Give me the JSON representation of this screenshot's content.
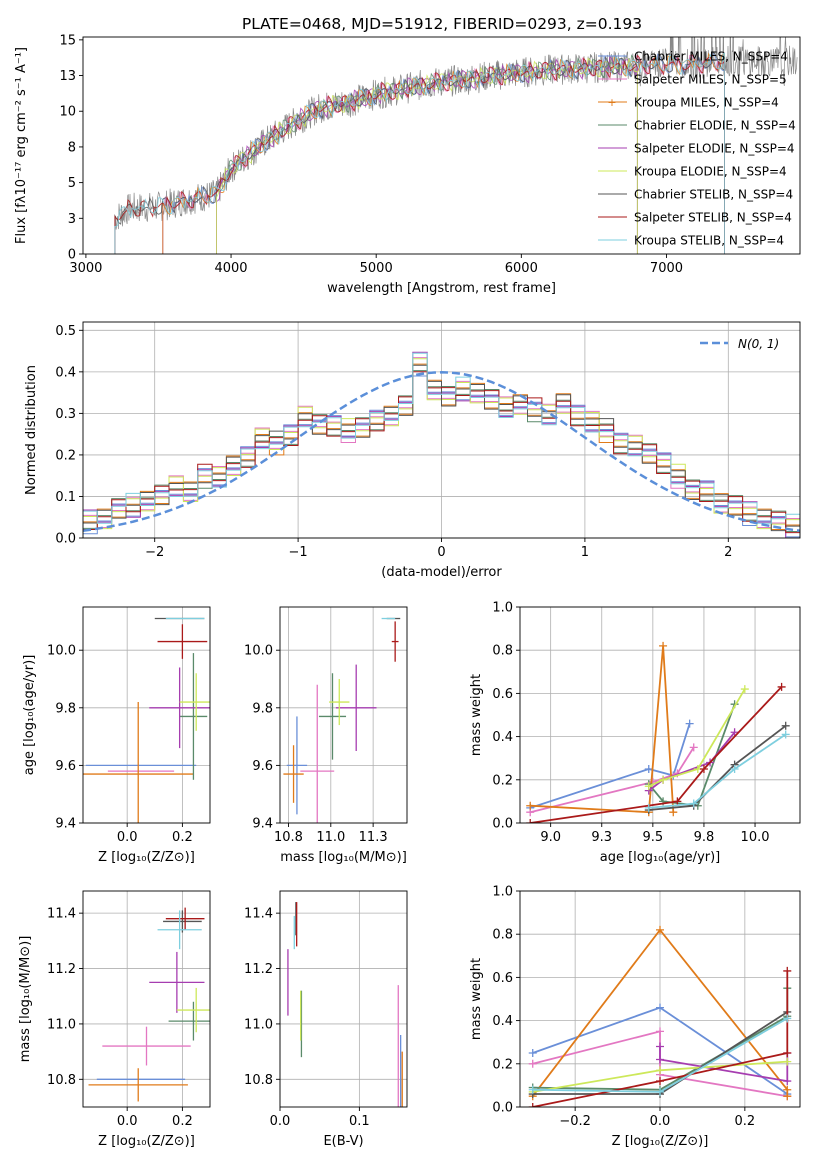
{
  "title": "PLATE=0468, MJD=51912, FIBERID=0293, z=0.193",
  "colors": [
    "#6a8fd8",
    "#e377c2",
    "#e07b1a",
    "#5a8a6a",
    "#a63db0",
    "#cde85a",
    "#555555",
    "#aa1a1a",
    "#7ecfdf"
  ],
  "chart_data": [
    {
      "id": "spectrum",
      "type": "line",
      "xlabel": "wavelength [Angstrom, rest frame]",
      "ylabel": "Flux [fλ10⁻¹⁷ erg cm⁻² s⁻¹ A⁻¹]",
      "xlim": [
        2980,
        7920
      ],
      "ylim": [
        0,
        15.2
      ],
      "xticks": [
        3000,
        4000,
        5000,
        6000,
        7000
      ],
      "yticks": [
        0.0,
        2.5,
        5.0,
        7.5,
        10.0,
        12.5,
        15.0
      ],
      "grid": false,
      "legend_position": "upper right",
      "series": [
        {
          "name": "Chabrier MILES, N_SSP=4",
          "x_range": [
            3530,
            7400
          ]
        },
        {
          "name": "Salpeter MILES, N_SSP=5",
          "x_range": [
            3530,
            7400
          ]
        },
        {
          "name": "Kroupa MILES, N_SSP=4",
          "x_range": [
            3530,
            7400
          ]
        },
        {
          "name": "Chabrier ELODIE, N_SSP=4",
          "x_range": [
            3900,
            6800
          ]
        },
        {
          "name": "Salpeter ELODIE, N_SSP=4",
          "x_range": [
            3900,
            6800
          ]
        },
        {
          "name": "Kroupa ELODIE, N_SSP=4",
          "x_range": [
            3900,
            6800
          ]
        },
        {
          "name": "Chabrier STELIB, N_SSP=4",
          "x_range": [
            3200,
            7400
          ]
        },
        {
          "name": "Salpeter STELIB, N_SSP=4",
          "x_range": [
            3200,
            7400
          ]
        },
        {
          "name": "Kroupa STELIB, N_SSP=4",
          "x_range": [
            3200,
            7400
          ]
        }
      ],
      "approx_continuum": {
        "x": [
          3200,
          3300,
          3500,
          3700,
          3900,
          4000,
          4200,
          4400,
          4600,
          4800,
          5000,
          5200,
          5400,
          5600,
          5800,
          6000,
          6200,
          6400,
          6600,
          6800,
          7000,
          7200,
          7400
        ],
        "y": [
          2.5,
          3.2,
          3.3,
          3.8,
          4.2,
          6.0,
          7.6,
          9.0,
          10.2,
          10.6,
          11.2,
          11.6,
          12.0,
          12.2,
          12.5,
          12.7,
          12.9,
          13.0,
          13.1,
          13.2,
          13.3,
          13.3,
          13.5
        ]
      }
    },
    {
      "id": "residuals",
      "type": "histogram",
      "xlabel": "(data-model)/error",
      "ylabel": "Normed distribution",
      "xlim": [
        -2.5,
        2.5
      ],
      "ylim": [
        0,
        0.52
      ],
      "xticks": [
        -2,
        -1,
        0,
        1,
        2
      ],
      "yticks": [
        0.0,
        0.1,
        0.2,
        0.3,
        0.4,
        0.5
      ],
      "grid": true,
      "legend": "N(0, 1)",
      "legend_position": "upper right",
      "bins": 50,
      "bin_range": [
        -2.5,
        2.5
      ],
      "approx_heights": [
        0.04,
        0.05,
        0.07,
        0.08,
        0.09,
        0.1,
        0.13,
        0.11,
        0.15,
        0.15,
        0.17,
        0.2,
        0.24,
        0.23,
        0.25,
        0.29,
        0.28,
        0.27,
        0.26,
        0.27,
        0.28,
        0.3,
        0.32,
        0.42,
        0.36,
        0.34,
        0.36,
        0.35,
        0.33,
        0.32,
        0.32,
        0.31,
        0.3,
        0.32,
        0.3,
        0.28,
        0.26,
        0.23,
        0.22,
        0.21,
        0.18,
        0.15,
        0.12,
        0.11,
        0.09,
        0.08,
        0.06,
        0.05,
        0.04,
        0.03
      ]
    },
    {
      "id": "age_vs_Z",
      "type": "errorbar",
      "xlabel": "Z [log₁₀(Z/Z⊙)]",
      "ylabel": "age  [log₁₀(age/yr)]",
      "xlim": [
        -0.16,
        0.3
      ],
      "ylim": [
        9.4,
        10.15
      ],
      "xticks": [
        0.0,
        0.2
      ],
      "yticks": [
        9.4,
        9.6,
        9.8,
        10.0
      ],
      "grid": true,
      "points": [
        {
          "x": 0.05,
          "y": 9.6,
          "xerr": 0.2,
          "yerr": 0.0
        },
        {
          "x": 0.05,
          "y": 9.58,
          "xerr": 0.12,
          "yerr": 0.0
        },
        {
          "x": 0.04,
          "y": 9.57,
          "xerr": 0.2,
          "yerr": 0.25
        },
        {
          "x": 0.24,
          "y": 9.77,
          "xerr": 0.05,
          "yerr": 0.22
        },
        {
          "x": 0.19,
          "y": 9.8,
          "xerr": 0.11,
          "yerr": 0.14
        },
        {
          "x": 0.25,
          "y": 9.82,
          "xerr": 0.06,
          "yerr": 0.1
        },
        {
          "x": 0.19,
          "y": 10.11,
          "xerr": 0.09,
          "yerr": 0.0
        },
        {
          "x": 0.2,
          "y": 10.03,
          "xerr": 0.09,
          "yerr": 0.06
        },
        {
          "x": 0.21,
          "y": 10.11,
          "xerr": 0.07,
          "yerr": 0.0
        }
      ]
    },
    {
      "id": "age_vs_mass",
      "type": "errorbar",
      "xlabel": "mass [log₁₀(M/M⊙)]",
      "ylabel": "",
      "xlim": [
        10.7,
        11.45
      ],
      "ylim": [
        9.4,
        10.15
      ],
      "xticks": [
        10.75,
        11.0,
        11.25
      ],
      "yticks": [
        9.4,
        9.6,
        9.8,
        10.0
      ],
      "grid": true,
      "points": [
        {
          "x": 10.8,
          "y": 9.6,
          "xerr": 0.06,
          "yerr": 0.17
        },
        {
          "x": 10.92,
          "y": 9.58,
          "xerr": 0.1,
          "yerr": 0.3
        },
        {
          "x": 10.78,
          "y": 9.57,
          "xerr": 0.06,
          "yerr": 0.1
        },
        {
          "x": 11.01,
          "y": 9.77,
          "xerr": 0.08,
          "yerr": 0.15
        },
        {
          "x": 11.15,
          "y": 9.8,
          "xerr": 0.12,
          "yerr": 0.15
        },
        {
          "x": 11.05,
          "y": 9.82,
          "xerr": 0.06,
          "yerr": 0.08
        },
        {
          "x": 11.37,
          "y": 10.11,
          "xerr": 0.04,
          "yerr": 0.0
        },
        {
          "x": 11.38,
          "y": 10.03,
          "xerr": 0.02,
          "yerr": 0.07
        },
        {
          "x": 11.34,
          "y": 10.11,
          "xerr": 0.04,
          "yerr": 0.0
        }
      ]
    },
    {
      "id": "weight_vs_age",
      "type": "line",
      "xlabel": "age  [log₁₀(age/yr)]",
      "ylabel": "mass weight",
      "xlim": [
        8.85,
        10.22
      ],
      "ylim": [
        0,
        1.0
      ],
      "xticks": [
        9.0,
        9.25,
        9.5,
        9.75,
        10.0
      ],
      "yticks": [
        0.0,
        0.2,
        0.4,
        0.6,
        0.8,
        1.0
      ],
      "grid": true,
      "series": [
        {
          "x": [
            8.9,
            9.48,
            9.6,
            9.68
          ],
          "y": [
            0.07,
            0.25,
            0.22,
            0.46
          ]
        },
        {
          "x": [
            8.9,
            9.5,
            9.62,
            9.7
          ],
          "y": [
            0.05,
            0.19,
            0.23,
            0.35
          ]
        },
        {
          "x": [
            8.9,
            9.48,
            9.55,
            9.6
          ],
          "y": [
            0.08,
            0.05,
            0.82,
            0.05
          ]
        },
        {
          "x": [
            9.48,
            9.55,
            9.72,
            9.9
          ],
          "y": [
            0.18,
            0.1,
            0.08,
            0.55
          ]
        },
        {
          "x": [
            9.48,
            9.55,
            9.78,
            9.9
          ],
          "y": [
            0.15,
            0.2,
            0.28,
            0.42
          ]
        },
        {
          "x": [
            9.48,
            9.55,
            9.72,
            9.95
          ],
          "y": [
            0.17,
            0.2,
            0.25,
            0.62
          ]
        },
        {
          "x": [
            9.48,
            9.7,
            9.9,
            10.15
          ],
          "y": [
            0.06,
            0.08,
            0.27,
            0.45
          ]
        },
        {
          "x": [
            8.9,
            9.62,
            9.75,
            10.13
          ],
          "y": [
            0.0,
            0.1,
            0.25,
            0.63
          ]
        },
        {
          "x": [
            9.48,
            9.7,
            9.9,
            10.15
          ],
          "y": [
            0.07,
            0.09,
            0.25,
            0.41
          ]
        }
      ]
    },
    {
      "id": "mass_vs_Z",
      "type": "errorbar",
      "xlabel": "Z [log₁₀(Z/Z⊙)]",
      "ylabel": "mass [log₁₀(M/M⊙)]",
      "xlim": [
        -0.16,
        0.3
      ],
      "ylim": [
        10.7,
        11.48
      ],
      "xticks": [
        0.0,
        0.2
      ],
      "yticks": [
        10.8,
        11.0,
        11.2,
        11.4
      ],
      "grid": true,
      "points": [
        {
          "x": 0.05,
          "y": 10.8,
          "xerr": 0.16,
          "yerr": 0.0
        },
        {
          "x": 0.07,
          "y": 10.92,
          "xerr": 0.16,
          "yerr": 0.07
        },
        {
          "x": 0.04,
          "y": 10.78,
          "xerr": 0.18,
          "yerr": 0.06
        },
        {
          "x": 0.24,
          "y": 11.01,
          "xerr": 0.09,
          "yerr": 0.07
        },
        {
          "x": 0.18,
          "y": 11.15,
          "xerr": 0.1,
          "yerr": 0.11
        },
        {
          "x": 0.25,
          "y": 11.05,
          "xerr": 0.07,
          "yerr": 0.08
        },
        {
          "x": 0.2,
          "y": 11.37,
          "xerr": 0.07,
          "yerr": 0.04
        },
        {
          "x": 0.21,
          "y": 11.38,
          "xerr": 0.07,
          "yerr": 0.04
        },
        {
          "x": 0.19,
          "y": 11.34,
          "xerr": 0.08,
          "yerr": 0.07
        }
      ]
    },
    {
      "id": "mass_vs_ebv",
      "type": "errorbar",
      "xlabel": "E(B-V)",
      "ylabel": "",
      "xlim": [
        0.0,
        0.16
      ],
      "ylim": [
        10.7,
        11.48
      ],
      "xticks": [
        0.0,
        0.1
      ],
      "yticks": [
        10.8,
        11.0,
        11.2,
        11.4
      ],
      "grid": true,
      "points": [
        {
          "x": 0.152,
          "y": 10.83,
          "xerr": 0.0,
          "yerr": 0.13
        },
        {
          "x": 0.149,
          "y": 10.9,
          "xerr": 0.0,
          "yerr": 0.24
        },
        {
          "x": 0.154,
          "y": 10.8,
          "xerr": 0.0,
          "yerr": 0.1
        },
        {
          "x": 0.027,
          "y": 11.0,
          "xerr": 0.0,
          "yerr": 0.12
        },
        {
          "x": 0.01,
          "y": 11.15,
          "xerr": 0.0,
          "yerr": 0.12
        },
        {
          "x": 0.026,
          "y": 11.03,
          "xerr": 0.0,
          "yerr": 0.09
        },
        {
          "x": 0.02,
          "y": 11.38,
          "xerr": 0.0,
          "yerr": 0.06
        },
        {
          "x": 0.021,
          "y": 11.36,
          "xerr": 0.0,
          "yerr": 0.08
        },
        {
          "x": 0.018,
          "y": 11.33,
          "xerr": 0.0,
          "yerr": 0.06
        }
      ]
    },
    {
      "id": "weight_vs_Z",
      "type": "line",
      "xlabel": "Z [log₁₀(Z/Z⊙)]",
      "ylabel": "mass weight",
      "xlim": [
        -0.33,
        0.33
      ],
      "ylim": [
        0,
        1.0
      ],
      "xticks": [
        -0.2,
        0.0,
        0.2
      ],
      "yticks": [
        0.0,
        0.2,
        0.4,
        0.6,
        0.8,
        1.0
      ],
      "grid": true,
      "series": [
        {
          "x": [
            -0.3,
            0.0,
            0.3
          ],
          "y": [
            0.25,
            0.46,
            0.06
          ]
        },
        {
          "x": [
            -0.3,
            0.0,
            0.0,
            0.3
          ],
          "y": [
            0.2,
            0.35,
            0.15,
            0.05
          ]
        },
        {
          "x": [
            -0.3,
            0.0,
            0.3,
            0.3
          ],
          "y": [
            0.05,
            0.82,
            0.08,
            0.05
          ]
        },
        {
          "x": [
            -0.3,
            0.0,
            0.3,
            0.3
          ],
          "y": [
            0.09,
            0.08,
            0.42,
            0.55
          ]
        },
        {
          "x": [
            0.0,
            0.0,
            0.3,
            0.3
          ],
          "y": [
            0.28,
            0.22,
            0.12,
            0.25
          ]
        },
        {
          "x": [
            -0.3,
            0.0,
            0.3
          ],
          "y": [
            0.07,
            0.17,
            0.21
          ]
        },
        {
          "x": [
            -0.3,
            0.0,
            0.3
          ],
          "y": [
            0.06,
            0.06,
            0.44
          ]
        },
        {
          "x": [
            -0.3,
            0.0,
            0.3,
            0.3
          ],
          "y": [
            0.0,
            0.12,
            0.25,
            0.63
          ]
        },
        {
          "x": [
            -0.3,
            0.0,
            0.3
          ],
          "y": [
            0.08,
            0.07,
            0.41
          ]
        }
      ]
    }
  ]
}
